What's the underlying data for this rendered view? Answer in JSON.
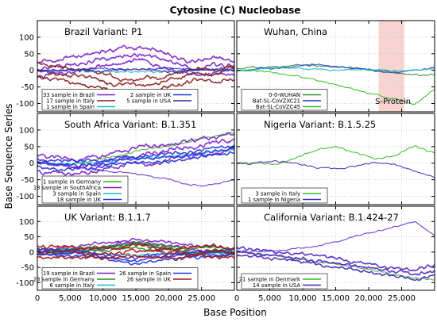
{
  "figure": {
    "title": "Cytosine (C) Nucleobase",
    "xlabel": "Base Position",
    "ylabel": "Base Sequence Series"
  },
  "chart_data": [
    {
      "type": "line",
      "title": "Brazil Variant: P1",
      "xlim": [
        0,
        30000
      ],
      "ylim": [
        -125,
        150
      ],
      "x_ticks": [
        0,
        5000,
        10000,
        15000,
        20000,
        25000
      ],
      "y_ticks": [
        -100,
        -50,
        0,
        50,
        100
      ],
      "legend": "bottom-left",
      "legend_cols": 2,
      "series": [
        {
          "name": "33 sample in Brazil",
          "color": "#7a1fc8",
          "x": [
            0,
            3000,
            6000,
            9000,
            12000,
            15000,
            18000,
            21000,
            24000,
            27000,
            30000
          ],
          "values": [
            0,
            12,
            20,
            30,
            42,
            50,
            40,
            25,
            10,
            15,
            5
          ],
          "spread": 25
        },
        {
          "name": "17 sample in Italy",
          "color": "#8a2020",
          "x": [
            0,
            3000,
            6000,
            9000,
            12000,
            15000,
            18000,
            21000,
            24000,
            27000,
            30000
          ],
          "values": [
            0,
            -12,
            -20,
            -30,
            -42,
            -50,
            -40,
            -25,
            -10,
            -15,
            -5
          ],
          "spread": 22
        },
        {
          "name": "1 sample in Spain",
          "color": "#18b8c8",
          "x": [
            0,
            5000,
            10000,
            15000,
            20000,
            25000,
            30000
          ],
          "values": [
            0,
            -2,
            -4,
            -5,
            -3,
            -1,
            0
          ],
          "spread": 3
        },
        {
          "name": "2 sample in UK",
          "color": "#2233dd",
          "x": [
            0,
            5000,
            10000,
            15000,
            20000,
            25000,
            30000
          ],
          "values": [
            0,
            2,
            4,
            5,
            3,
            1,
            0
          ],
          "spread": 3
        },
        {
          "name": "5 sample in USA",
          "color": "#4a1a9a",
          "x": [
            0,
            5000,
            10000,
            15000,
            20000,
            25000,
            30000
          ],
          "values": [
            0,
            3,
            -3,
            4,
            -4,
            2,
            0
          ],
          "spread": 4
        }
      ]
    },
    {
      "type": "line",
      "title": "Wuhan, China",
      "xlim": [
        0,
        30000
      ],
      "ylim": [
        -125,
        150
      ],
      "x_ticks": [
        0,
        5000,
        10000,
        15000,
        20000,
        25000
      ],
      "y_ticks": [
        -100,
        -50,
        0,
        50,
        100
      ],
      "legend": "bottom-left",
      "legend_cols": 1,
      "highlight": {
        "x_start": 21500,
        "x_end": 25400,
        "label": "S-Protein"
      },
      "series": [
        {
          "name": "0-0-WUHAN",
          "color": "#2b8a2b",
          "x": [
            0,
            5000,
            10000,
            15000,
            20000,
            25000,
            30000
          ],
          "values": [
            5,
            10,
            15,
            10,
            0,
            -10,
            -15
          ],
          "spread": 2
        },
        {
          "name": "Bat-SL-CoVZXC21",
          "color": "#2233dd",
          "x": [
            0,
            3000,
            6000,
            9000,
            12000,
            15000,
            18000,
            21000,
            24000,
            27000,
            30000
          ],
          "values": [
            0,
            3,
            8,
            13,
            18,
            12,
            5,
            0,
            -5,
            0,
            8
          ],
          "spread": 2
        },
        {
          "name": "Bat-SL-CoVZC45",
          "color": "#33bb22",
          "x": [
            0,
            3000,
            6000,
            9000,
            12000,
            15000,
            18000,
            21000,
            24000,
            27000,
            30000
          ],
          "values": [
            0,
            -5,
            -10,
            -18,
            -30,
            -45,
            -60,
            -75,
            -88,
            -100,
            -55
          ],
          "spread": 2
        },
        {
          "name": "",
          "color": "#18b8c8",
          "x": [
            0,
            5000,
            10000,
            15000,
            20000,
            25000,
            30000
          ],
          "values": [
            -2,
            8,
            6,
            3,
            2,
            -3,
            5
          ],
          "spread": 1
        }
      ]
    },
    {
      "type": "line",
      "title": "South Africa Variant: B.1.351",
      "xlim": [
        0,
        30000
      ],
      "ylim": [
        -125,
        150
      ],
      "x_ticks": [
        0,
        5000,
        10000,
        15000,
        20000,
        25000
      ],
      "y_ticks": [
        -100,
        -50,
        0,
        50,
        100
      ],
      "legend": "bottom-left",
      "legend_cols": 1,
      "series": [
        {
          "name": "1 sample in Germany",
          "color": "#33bb22",
          "x": [
            0,
            5000,
            10000,
            15000,
            20000,
            25000,
            30000
          ],
          "values": [
            0,
            -5,
            15,
            35,
            50,
            75,
            95
          ],
          "spread": 3
        },
        {
          "name": "18 sample in SouthAfrica",
          "color": "#7a1fc8",
          "x": [
            0,
            3000,
            6000,
            9000,
            12000,
            15000,
            18000,
            21000,
            24000,
            27000,
            30000
          ],
          "values": [
            0,
            -5,
            -10,
            -5,
            10,
            20,
            30,
            40,
            50,
            60,
            70
          ],
          "spread": 25
        },
        {
          "name": "3 sample in Spain",
          "color": "#18b8c8",
          "x": [
            0,
            5000,
            10000,
            15000,
            20000,
            25000,
            30000
          ],
          "values": [
            0,
            -3,
            5,
            12,
            20,
            30,
            40
          ],
          "spread": 3
        },
        {
          "name": "18 sample in UK",
          "color": "#2233dd",
          "x": [
            0,
            3000,
            6000,
            9000,
            12000,
            15000,
            18000,
            21000,
            24000,
            27000,
            30000
          ],
          "values": [
            0,
            -5,
            -8,
            -3,
            5,
            10,
            15,
            20,
            28,
            35,
            45
          ],
          "spread": 12
        },
        {
          "name": "",
          "color": "#6a2bd0",
          "x": [
            0,
            5000,
            10000,
            15000,
            20000,
            25000,
            30000
          ],
          "values": [
            0,
            -10,
            -20,
            -35,
            -50,
            -70,
            -50
          ],
          "spread": 2
        }
      ]
    },
    {
      "type": "line",
      "title": "Nigeria Variant: B.1.5.25",
      "xlim": [
        0,
        30000
      ],
      "ylim": [
        -125,
        150
      ],
      "x_ticks": [
        0,
        5000,
        10000,
        15000,
        20000,
        25000
      ],
      "y_ticks": [
        -100,
        -50,
        0,
        50,
        100
      ],
      "legend": "bottom-left",
      "legend_cols": 1,
      "series": [
        {
          "name": "3 sample in Italy",
          "color": "#33bb22",
          "x": [
            0,
            3000,
            6000,
            9000,
            12000,
            15000,
            18000,
            21000,
            24000,
            27000,
            30000
          ],
          "values": [
            0,
            0,
            -2,
            18,
            40,
            48,
            30,
            10,
            25,
            50,
            30
          ],
          "spread": 2
        },
        {
          "name": "1 sample in Nigeria",
          "color": "#4a22c0",
          "x": [
            0,
            3000,
            6000,
            9000,
            12000,
            15000,
            18000,
            21000,
            24000,
            27000,
            30000
          ],
          "values": [
            0,
            2,
            4,
            0,
            -12,
            -18,
            -10,
            2,
            -5,
            -25,
            -40
          ],
          "spread": 2
        }
      ]
    },
    {
      "type": "line",
      "title": "UK Variant: B.1.1.7",
      "xlim": [
        0,
        30000
      ],
      "ylim": [
        -125,
        150
      ],
      "x_ticks": [
        0,
        5000,
        10000,
        15000,
        20000,
        25000
      ],
      "y_ticks": [
        -100,
        -50,
        0,
        50,
        100
      ],
      "legend": "bottom-left",
      "legend_cols": 2,
      "series": [
        {
          "name": "19 sample in Brazil",
          "color": "#7a1fc8",
          "x": [
            0,
            3000,
            6000,
            9000,
            12000,
            15000,
            18000,
            21000,
            24000,
            27000,
            30000
          ],
          "values": [
            0,
            5,
            8,
            15,
            25,
            35,
            25,
            15,
            5,
            10,
            0
          ],
          "spread": 10
        },
        {
          "name": "23 sample in Germany",
          "color": "#2b8a2b",
          "x": [
            0,
            3000,
            6000,
            9000,
            12000,
            15000,
            18000,
            21000,
            24000,
            27000,
            30000
          ],
          "values": [
            0,
            3,
            5,
            10,
            18,
            25,
            18,
            10,
            3,
            8,
            0
          ],
          "spread": 8
        },
        {
          "name": "6 sample in Italy",
          "color": "#18b8c8",
          "x": [
            0,
            5000,
            10000,
            15000,
            20000,
            25000,
            30000
          ],
          "values": [
            0,
            -2,
            -5,
            -8,
            -5,
            -2,
            0
          ],
          "spread": 4
        },
        {
          "name": "26 sample in Spain",
          "color": "#2233dd",
          "x": [
            0,
            3000,
            6000,
            9000,
            12000,
            15000,
            18000,
            21000,
            24000,
            27000,
            30000
          ],
          "values": [
            0,
            -3,
            -6,
            -12,
            -20,
            -28,
            -20,
            -12,
            -5,
            -8,
            0
          ],
          "spread": 10
        },
        {
          "name": "26 sample in UK",
          "color": "#aa1010",
          "x": [
            0,
            3000,
            6000,
            9000,
            12000,
            15000,
            18000,
            21000,
            24000,
            27000,
            30000
          ],
          "values": [
            0,
            2,
            0,
            -5,
            0,
            5,
            0,
            -5,
            0,
            5,
            0
          ],
          "spread": 18
        }
      ]
    },
    {
      "type": "line",
      "title": "California Variant: B.1.424-27",
      "xlim": [
        0,
        30000
      ],
      "ylim": [
        -125,
        150
      ],
      "x_ticks": [
        0,
        5000,
        10000,
        15000,
        20000,
        25000
      ],
      "y_ticks": [
        -100,
        -50,
        0,
        50,
        100
      ],
      "legend": "bottom-left",
      "legend_cols": 1,
      "series": [
        {
          "name": "21 sample in Denmark",
          "color": "#33bb22",
          "x": [
            0,
            5000,
            10000,
            15000,
            20000,
            25000,
            30000
          ],
          "values": [
            0,
            -10,
            -25,
            -40,
            -55,
            -80,
            -90
          ],
          "spread": 3
        },
        {
          "name": "14 sample in USA",
          "color": "#4a22c0",
          "x": [
            0,
            3000,
            6000,
            9000,
            12000,
            15000,
            18000,
            21000,
            24000,
            27000,
            30000
          ],
          "values": [
            0,
            -5,
            -10,
            -18,
            -28,
            -35,
            -45,
            -55,
            -65,
            -75,
            -60
          ],
          "spread": 15
        },
        {
          "name": "",
          "color": "#6a2bd0",
          "x": [
            0,
            3000,
            6000,
            9000,
            12000,
            15000,
            18000,
            21000,
            24000,
            27000,
            30000
          ],
          "values": [
            0,
            3,
            5,
            10,
            20,
            35,
            50,
            65,
            85,
            100,
            55
          ],
          "spread": 2
        }
      ]
    }
  ]
}
